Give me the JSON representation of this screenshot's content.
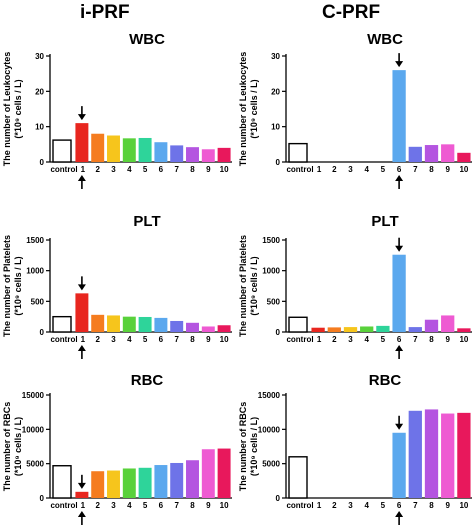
{
  "headers": {
    "left": "i-PRF",
    "right": "C-PRF"
  },
  "colors": {
    "control": "#ffffff",
    "1": "#e8261f",
    "2": "#f57c1f",
    "3": "#f6c51c",
    "4": "#59d13b",
    "5": "#2ed49a",
    "6": "#5ba8ee",
    "7": "#6e73e8",
    "8": "#b455e0",
    "9": "#ee5ad2",
    "10": "#e8185c"
  },
  "chart_data": [
    {
      "id": "iprf-wbc",
      "type": "bar",
      "title": "WBC",
      "ylabel_line1": "The number of Leukocytes",
      "ylabel_line2": "(*10⁹ cells / L)",
      "ylim": [
        0,
        30
      ],
      "yticks": [
        0,
        10,
        20,
        30
      ],
      "categories": [
        "control",
        "1",
        "2",
        "3",
        "4",
        "5",
        "6",
        "7",
        "8",
        "9",
        "10"
      ],
      "values": [
        6.2,
        11,
        8,
        7.5,
        6.7,
        6.8,
        5.6,
        4.7,
        4.2,
        3.6,
        4
      ],
      "arrow_category": "1"
    },
    {
      "id": "cprf-wbc",
      "type": "bar",
      "title": "WBC",
      "ylabel_line1": "The number of Leukocytes",
      "ylabel_line2": "(*10⁹ cells / L)",
      "ylim": [
        0,
        30
      ],
      "yticks": [
        0,
        10,
        20,
        30
      ],
      "categories": [
        "control",
        "1",
        "2",
        "3",
        "4",
        "5",
        "6",
        "7",
        "8",
        "9",
        "10"
      ],
      "values": [
        5.2,
        0,
        0,
        0,
        0,
        0,
        26,
        4.3,
        4.8,
        5,
        2.6
      ],
      "arrow_category": "6"
    },
    {
      "id": "iprf-plt",
      "type": "bar",
      "title": "PLT",
      "ylabel_line1": "The number of Platelets",
      "ylabel_line2": "(*10⁹ cells / L)",
      "ylim": [
        0,
        1500
      ],
      "yticks": [
        0,
        500,
        1000,
        1500
      ],
      "categories": [
        "control",
        "1",
        "2",
        "3",
        "4",
        "5",
        "6",
        "7",
        "8",
        "9",
        "10"
      ],
      "values": [
        250,
        630,
        280,
        270,
        250,
        245,
        230,
        180,
        150,
        90,
        110
      ],
      "arrow_category": "1"
    },
    {
      "id": "cprf-plt",
      "type": "bar",
      "title": "PLT",
      "ylabel_line1": "The number of  Platelets",
      "ylabel_line2": "(*10⁹ cells / L)",
      "ylim": [
        0,
        1500
      ],
      "yticks": [
        0,
        500,
        1000,
        1500
      ],
      "categories": [
        "control",
        "1",
        "2",
        "3",
        "4",
        "5",
        "6",
        "7",
        "8",
        "9",
        "10"
      ],
      "values": [
        240,
        70,
        75,
        80,
        90,
        100,
        1260,
        80,
        200,
        270,
        60
      ],
      "arrow_category": "6"
    },
    {
      "id": "iprf-rbc",
      "type": "bar",
      "title": "RBC",
      "ylabel_line1": "The number of RBCs",
      "ylabel_line2": "(*10⁹ cells / L)",
      "ylim": [
        0,
        15000
      ],
      "yticks": [
        0,
        5000,
        10000,
        15000
      ],
      "categories": [
        "control",
        "1",
        "2",
        "3",
        "4",
        "5",
        "6",
        "7",
        "8",
        "9",
        "10"
      ],
      "values": [
        4700,
        900,
        3900,
        4000,
        4300,
        4400,
        4800,
        5100,
        5500,
        7100,
        7200
      ],
      "arrow_category": "1"
    },
    {
      "id": "cprf-rbc",
      "type": "bar",
      "title": "RBC",
      "ylabel_line1": "The number of RBCs",
      "ylabel_line2": "(*10⁹ cells / L)",
      "ylim": [
        0,
        15000
      ],
      "yticks": [
        0,
        5000,
        10000,
        15000
      ],
      "categories": [
        "control",
        "1",
        "2",
        "3",
        "4",
        "5",
        "6",
        "7",
        "8",
        "9",
        "10"
      ],
      "values": [
        6000,
        0,
        0,
        0,
        0,
        0,
        9500,
        12700,
        12900,
        12300,
        12400
      ],
      "arrow_category": "6"
    }
  ]
}
